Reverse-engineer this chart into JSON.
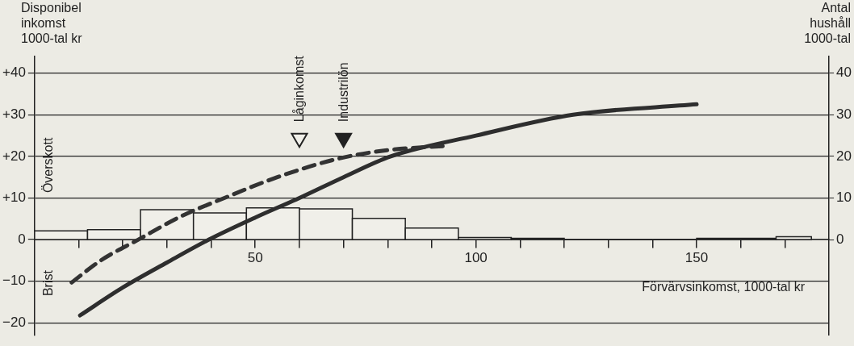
{
  "chart_data": {
    "type": "line",
    "ylabel": "Disponibel inkomst 1000-tal kr",
    "y2label": "Antal hushåll 1000-tal",
    "xlabel": "Förvärvsinkomst, 1000-tal kr",
    "xlim": [
      0,
      180
    ],
    "xticks": [
      {
        "value": 10,
        "label": null
      },
      {
        "value": 20,
        "label": null
      },
      {
        "value": 30,
        "label": null
      },
      {
        "value": 40,
        "label": null
      },
      50,
      {
        "value": 60,
        "label": null
      },
      {
        "value": 70,
        "label": null
      },
      {
        "value": 80,
        "label": null
      },
      {
        "value": 90,
        "label": null
      },
      100,
      {
        "value": 110,
        "label": null
      },
      {
        "value": 120,
        "label": null
      },
      {
        "value": 130,
        "label": null
      },
      {
        "value": 140,
        "label": null
      },
      150,
      {
        "value": 160,
        "label": null
      },
      {
        "value": 170,
        "label": null
      }
    ],
    "ylim": [
      -23,
      44
    ],
    "yticks": [
      {
        "value": -20,
        "label": "−20"
      },
      {
        "value": -10,
        "label": "−10"
      },
      0,
      {
        "value": 10,
        "label": "+10"
      },
      {
        "value": 20,
        "label": "+20"
      },
      {
        "value": 30,
        "label": "+30"
      },
      {
        "value": 40,
        "label": "+40"
      }
    ],
    "y2lim": [
      -23,
      44
    ],
    "y2ticks": [
      0,
      10,
      20,
      30,
      40
    ],
    "grid": "y",
    "legend": false,
    "series": [
      {
        "type": "histogram",
        "axis": "y2",
        "color": "#f0efe9",
        "bins": [
          0,
          12,
          24,
          36,
          48,
          60,
          72,
          84,
          96,
          108,
          120,
          150,
          168,
          176
        ],
        "values": [
          2.1,
          2.4,
          7.2,
          6.4,
          7.6,
          7.4,
          5.1,
          2.8,
          0.5,
          0.3,
          0,
          0.3,
          0.7
        ]
      },
      {
        "color": "#333333",
        "line_style": "dashed",
        "marker": "none",
        "x": [
          8.4,
          15,
          23.5,
          33,
          43,
          55,
          69,
          80,
          93
        ],
        "values": [
          -10.3,
          -5,
          0,
          5.5,
          10,
          15,
          19.5,
          21.5,
          22.5
        ]
      },
      {
        "color": "#2e2e2e",
        "line_style": "solid",
        "marker": "none",
        "x": [
          10.3,
          20,
          30,
          39.5,
          50,
          60,
          70,
          80.7,
          100,
          122,
          150
        ],
        "values": [
          -18.2,
          -11.5,
          -5.5,
          0,
          5.3,
          10,
          15,
          20,
          25,
          30,
          32.5
        ]
      },
      {
        "type": "scatter",
        "marker": "triangle",
        "colors": [
          "#f0efe9",
          "#222222"
        ],
        "x": [
          60,
          70
        ],
        "values": [
          24.4,
          24.4
        ]
      }
    ],
    "annotations": [
      "Låginkomst",
      "Industrilön",
      "Överskott",
      "Brist"
    ]
  }
}
